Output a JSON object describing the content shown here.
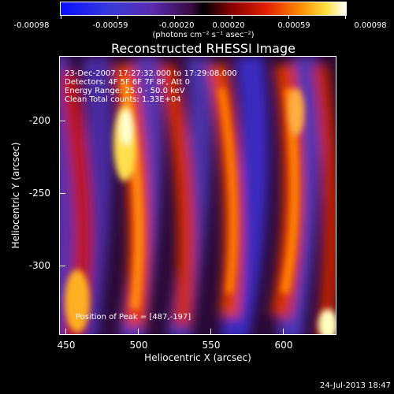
{
  "colorbar": {
    "tick_labels": [
      "-0.00098",
      "-0.00059",
      "-0.00020",
      "0.00020",
      "0.00059",
      "0.00098"
    ],
    "units": "(photons cm⁻² s⁻¹ asec⁻²)"
  },
  "plot": {
    "title": "Reconstructed RHESSI Image",
    "annotations": {
      "time": "23-Dec-2007 17:27:32.000 to 17:29:08.000",
      "detectors": "Detectors: 4F 5F 6F 7F 8F, Att 0",
      "energy": "Energy Range: 25.0 - 50.0 keV",
      "clean": "Clean    Total counts: 1.33E+04",
      "peak": "Position of Peak = [487,-197]"
    },
    "xaxis": {
      "label": "Heliocentric X (arcsec)",
      "ticks": [
        "450",
        "500",
        "550",
        "600"
      ]
    },
    "yaxis": {
      "label": "Heliocentric Y (arcsec)",
      "ticks": [
        "-200",
        "-250",
        "-300"
      ]
    }
  },
  "footer": {
    "timestamp": "24-Jul-2013 18:47"
  },
  "chart_data": {
    "type": "heatmap",
    "title": "Reconstructed RHESSI Image",
    "xlabel": "Heliocentric X (arcsec)",
    "ylabel": "Heliocentric Y (arcsec)",
    "xlim": [
      446,
      637
    ],
    "ylim": [
      -350,
      -160
    ],
    "colorbar_range": [
      -0.00098,
      0.00098
    ],
    "peak_position": [
      487,
      -197
    ]
  }
}
